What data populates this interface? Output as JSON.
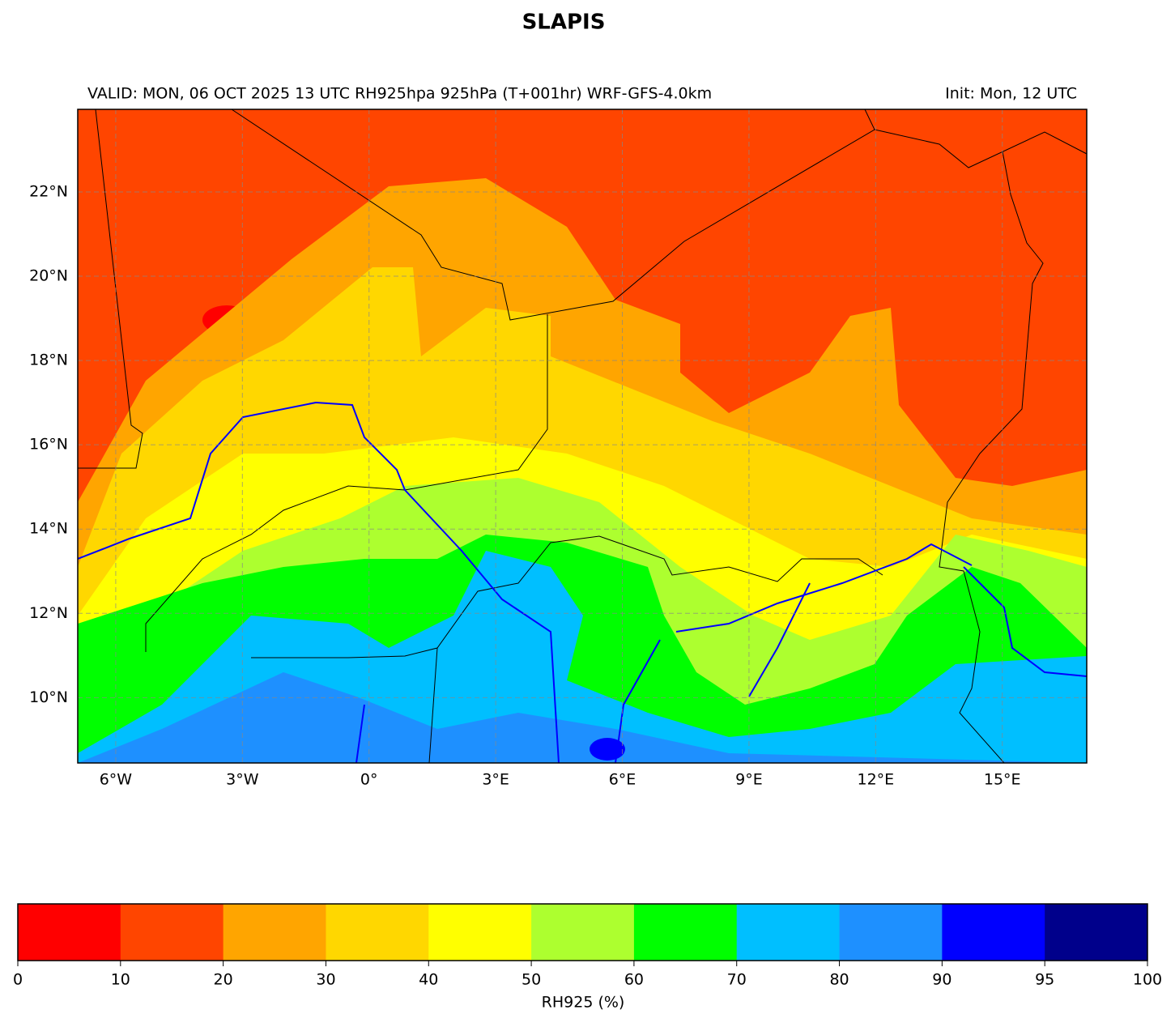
{
  "title": "SLAPIS",
  "subtitle_left": "VALID: MON, 06 OCT 2025 13 UTC  RH925hpa 925hPa (T+001hr) WRF-GFS-4.0km",
  "subtitle_right": "Init: Mon, 12 UTC",
  "map": {
    "lon_range": [
      -6.9,
      17
    ],
    "lat_range": [
      8.45,
      23.96
    ],
    "lon_ticks": [
      {
        "value": -6,
        "label": "6°W"
      },
      {
        "value": -3,
        "label": "3°W"
      },
      {
        "value": 0,
        "label": "0°"
      },
      {
        "value": 3,
        "label": "3°E"
      },
      {
        "value": 6,
        "label": "6°E"
      },
      {
        "value": 9,
        "label": "9°E"
      },
      {
        "value": 12,
        "label": "12°E"
      },
      {
        "value": 15,
        "label": "15°E"
      }
    ],
    "lat_ticks": [
      {
        "value": 10,
        "label": "10°N"
      },
      {
        "value": 12,
        "label": "12°N"
      },
      {
        "value": 14,
        "label": "14°N"
      },
      {
        "value": 16,
        "label": "16°N"
      },
      {
        "value": 18,
        "label": "18°N"
      },
      {
        "value": 20,
        "label": "20°N"
      },
      {
        "value": 22,
        "label": "22°N"
      }
    ]
  },
  "colorbar": {
    "label": "RH925 (%)",
    "bounds": [
      0,
      10,
      20,
      30,
      40,
      50,
      60,
      70,
      80,
      90,
      95,
      100
    ],
    "colors": [
      "#ff0000",
      "#ff4500",
      "#ffa500",
      "#ffd700",
      "#ffff00",
      "#adff2f",
      "#00ff00",
      "#00bfff",
      "#1e90ff",
      "#0000ff",
      "#00008b"
    ]
  }
}
